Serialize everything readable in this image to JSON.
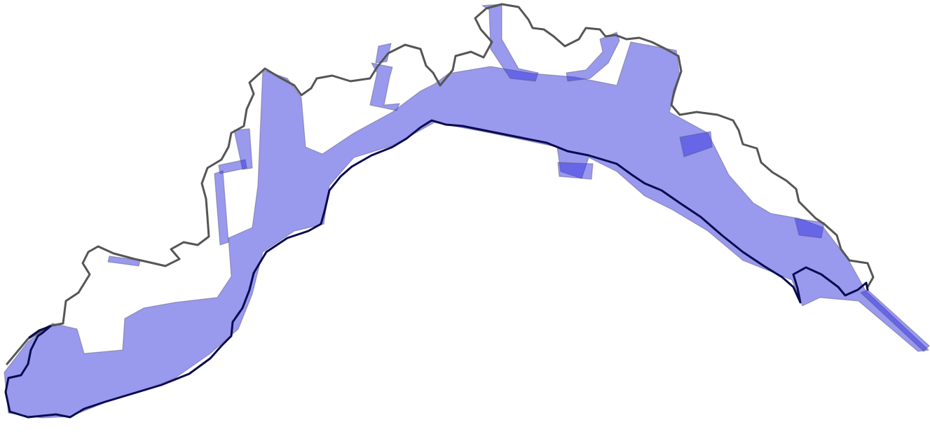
{
  "map": {
    "colors": {
      "background": "#ffffff",
      "coverage_fill": "#3333dd",
      "coverage_stroke": "#555577",
      "region_boundary": "#555555",
      "coastline": "#0a0a50"
    },
    "layers": [
      {
        "name": "region-boundary",
        "style": "dark grey outline"
      },
      {
        "name": "coverage-strips",
        "style": "semi-transparent blue strips"
      },
      {
        "name": "coastline",
        "style": "dark navy line"
      }
    ]
  }
}
